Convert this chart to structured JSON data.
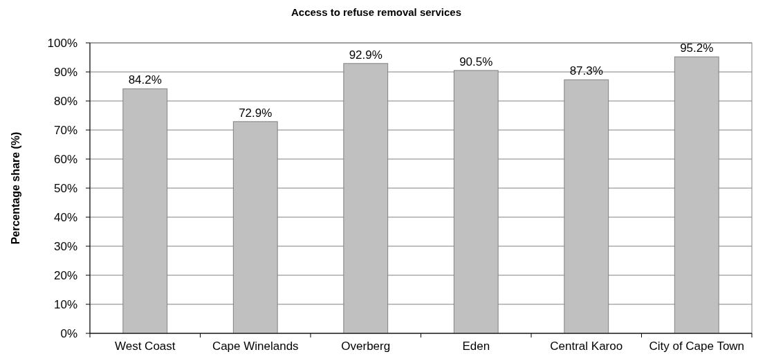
{
  "chart_data": {
    "type": "bar",
    "title": "Access to refuse removal services",
    "ylabel": "Percentage share (%)",
    "categories": [
      "West Coast",
      "Cape Winelands",
      "Overberg",
      "Eden",
      "Central Karoo",
      "City of Cape Town"
    ],
    "values": [
      84.2,
      72.9,
      92.9,
      90.5,
      87.3,
      95.2
    ],
    "color": "#c0c0c0",
    "value_labels": [
      "84.2%",
      "72.9%",
      "92.9%",
      "90.5%",
      "87.3%",
      "95.2%"
    ],
    "ylim": [
      0,
      100
    ],
    "yticks": [
      {
        "value": 0,
        "label": "0%"
      },
      {
        "value": 10,
        "label": "10%"
      },
      {
        "value": 20,
        "label": "20%"
      },
      {
        "value": 30,
        "label": "30%"
      },
      {
        "value": 40,
        "label": "40%"
      },
      {
        "value": 50,
        "label": "50%"
      },
      {
        "value": 60,
        "label": "60%"
      },
      {
        "value": 70,
        "label": "70%"
      },
      {
        "value": 80,
        "label": "80%"
      },
      {
        "value": 90,
        "label": "90%"
      },
      {
        "value": 100,
        "label": "100%"
      }
    ],
    "grid": "y"
  }
}
